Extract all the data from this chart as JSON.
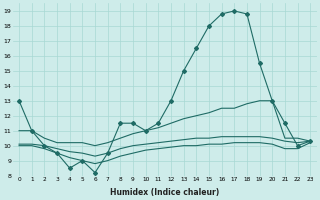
{
  "xlabel": "Humidex (Indice chaleur)",
  "x": [
    0,
    1,
    2,
    3,
    4,
    5,
    6,
    7,
    8,
    9,
    10,
    11,
    12,
    13,
    14,
    15,
    16,
    17,
    18,
    19,
    20,
    21,
    22,
    23
  ],
  "main_y": [
    13,
    11,
    10,
    9.5,
    8.5,
    9,
    8.2,
    9.5,
    11.5,
    11.5,
    11,
    11.5,
    13,
    15,
    16.5,
    18,
    18.8,
    19,
    18.8,
    15.5,
    13,
    11.5,
    10,
    10.3
  ],
  "upper_y": [
    11,
    11,
    10.5,
    10.2,
    10.2,
    10.2,
    10.0,
    10.2,
    10.5,
    10.8,
    11.0,
    11.2,
    11.5,
    11.8,
    12.0,
    12.2,
    12.5,
    12.5,
    12.8,
    13.0,
    13.0,
    10.5,
    10.5,
    10.3
  ],
  "mid_y": [
    10.1,
    10.1,
    10.0,
    9.8,
    9.6,
    9.5,
    9.3,
    9.5,
    9.8,
    10.0,
    10.1,
    10.2,
    10.3,
    10.4,
    10.5,
    10.5,
    10.6,
    10.6,
    10.6,
    10.6,
    10.5,
    10.3,
    10.2,
    10.3
  ],
  "low_y": [
    10.0,
    10.0,
    9.8,
    9.5,
    9.2,
    9.0,
    8.8,
    9.0,
    9.3,
    9.5,
    9.7,
    9.8,
    9.9,
    10.0,
    10.0,
    10.1,
    10.1,
    10.2,
    10.2,
    10.2,
    10.1,
    9.8,
    9.8,
    10.2
  ],
  "background": "#ceecea",
  "grid_color": "#a8d8d4",
  "line_color": "#1f6b65",
  "ylim": [
    8,
    19.5
  ],
  "xlim": [
    -0.5,
    23.5
  ]
}
